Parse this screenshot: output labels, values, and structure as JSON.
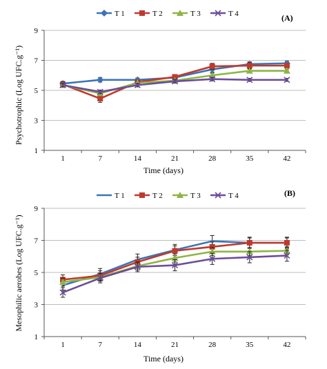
{
  "chart_data": [
    {
      "type": "line",
      "panel_label": "(A)",
      "xlabel": "Time (days)",
      "ylabel": "Psychotrophic (Log UFC.g⁻¹)",
      "categories": [
        "1",
        "7",
        "14",
        "21",
        "28",
        "35",
        "42"
      ],
      "ylim": [
        1,
        9
      ],
      "yticks": [
        "1",
        "3",
        "5",
        "7",
        "9"
      ],
      "grid": "horizontal",
      "legend_position": "top",
      "series": [
        {
          "name": "T 1",
          "color": "#3b73b9",
          "marker": "diamond",
          "values": [
            5.45,
            5.7,
            5.7,
            5.85,
            6.4,
            6.75,
            6.8
          ],
          "errors": [
            0.15,
            0.15,
            0.12,
            0.12,
            0.2,
            0.15,
            0.15
          ]
        },
        {
          "name": "T 2",
          "color": "#c0392b",
          "marker": "square",
          "values": [
            5.4,
            4.45,
            5.55,
            5.9,
            6.6,
            6.65,
            6.65
          ],
          "errors": [
            0.2,
            0.25,
            0.15,
            0.15,
            0.2,
            0.2,
            0.15
          ]
        },
        {
          "name": "T 3",
          "color": "#8db544",
          "marker": "triangle",
          "values": [
            5.35,
            4.8,
            5.5,
            5.65,
            6.0,
            6.3,
            6.3
          ],
          "errors": [
            0.15,
            0.15,
            0.12,
            0.12,
            0.15,
            0.12,
            0.12
          ]
        },
        {
          "name": "T 4",
          "color": "#6b4c9a",
          "marker": "x",
          "values": [
            5.35,
            4.9,
            5.35,
            5.6,
            5.75,
            5.7,
            5.7
          ],
          "errors": [
            0.12,
            0.12,
            0.12,
            0.12,
            0.12,
            0.1,
            0.1
          ]
        }
      ]
    },
    {
      "type": "line",
      "panel_label": "(B)",
      "xlabel": "Time (days)",
      "ylabel": "Mesophilic aerobes (Log UFC.g⁻¹)",
      "categories": [
        "1",
        "7",
        "14",
        "21",
        "28",
        "35",
        "42"
      ],
      "ylim": [
        1,
        9
      ],
      "yticks": [
        "1",
        "3",
        "5",
        "7",
        "9"
      ],
      "grid": "horizontal",
      "legend_position": "top",
      "series": [
        {
          "name": "T 1",
          "color": "#3b73b9",
          "marker": "none",
          "values": [
            4.2,
            4.9,
            5.8,
            6.4,
            6.95,
            6.85,
            6.85
          ],
          "errors": [
            0.3,
            0.35,
            0.35,
            0.35,
            0.35,
            0.35,
            0.35
          ]
        },
        {
          "name": "T 2",
          "color": "#c0392b",
          "marker": "square",
          "values": [
            4.55,
            4.8,
            5.65,
            6.35,
            6.6,
            6.85,
            6.85
          ],
          "errors": [
            0.3,
            0.3,
            0.3,
            0.3,
            0.3,
            0.3,
            0.3
          ]
        },
        {
          "name": "T 3",
          "color": "#8db544",
          "marker": "triangle",
          "values": [
            4.4,
            4.7,
            5.4,
            5.9,
            6.3,
            6.3,
            6.35
          ],
          "errors": [
            0.25,
            0.25,
            0.25,
            0.25,
            0.25,
            0.25,
            0.25
          ]
        },
        {
          "name": "T 4",
          "color": "#6b4c9a",
          "marker": "x",
          "values": [
            3.75,
            4.65,
            5.35,
            5.45,
            5.85,
            5.95,
            6.05
          ],
          "errors": [
            0.3,
            0.3,
            0.3,
            0.35,
            0.35,
            0.35,
            0.35
          ]
        }
      ]
    }
  ]
}
